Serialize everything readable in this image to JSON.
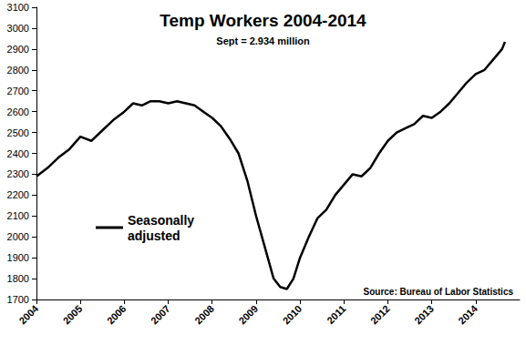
{
  "chart_data": {
    "type": "line",
    "title": "Temp Workers 2004-2014",
    "subtitle": "Sept = 2.934 million",
    "source": "Source: Bureau of Labor Statistics",
    "series": [
      {
        "name": "Seasonally adjusted",
        "color": "#000000",
        "x": [
          2004.0,
          2004.25,
          2004.5,
          2004.75,
          2005.0,
          2005.25,
          2005.5,
          2005.75,
          2006.0,
          2006.2,
          2006.4,
          2006.6,
          2006.8,
          2007.0,
          2007.2,
          2007.4,
          2007.6,
          2007.8,
          2008.0,
          2008.2,
          2008.4,
          2008.6,
          2008.8,
          2009.0,
          2009.2,
          2009.4,
          2009.55,
          2009.7,
          2009.85,
          2010.0,
          2010.2,
          2010.4,
          2010.6,
          2010.8,
          2011.0,
          2011.2,
          2011.4,
          2011.6,
          2011.8,
          2012.0,
          2012.2,
          2012.4,
          2012.6,
          2012.8,
          2013.0,
          2013.2,
          2013.4,
          2013.6,
          2013.8,
          2014.0,
          2014.2,
          2014.4,
          2014.6,
          2014.667
        ],
        "values": [
          2290,
          2330,
          2380,
          2420,
          2480,
          2460,
          2510,
          2560,
          2600,
          2640,
          2630,
          2650,
          2650,
          2640,
          2650,
          2640,
          2630,
          2600,
          2570,
          2530,
          2470,
          2400,
          2270,
          2100,
          1950,
          1800,
          1760,
          1750,
          1800,
          1900,
          2000,
          2090,
          2130,
          2200,
          2250,
          2300,
          2290,
          2330,
          2400,
          2460,
          2500,
          2520,
          2540,
          2580,
          2570,
          2600,
          2640,
          2690,
          2740,
          2780,
          2800,
          2850,
          2900,
          2934
        ]
      }
    ],
    "xlim": [
      2004,
      2015
    ],
    "xticks": [
      2004,
      2005,
      2006,
      2007,
      2008,
      2009,
      2010,
      2011,
      2012,
      2013,
      2014
    ],
    "ylim": [
      1700,
      3100
    ],
    "yticks": [
      1700,
      1800,
      1900,
      2000,
      2100,
      2200,
      2300,
      2400,
      2500,
      2600,
      2700,
      2800,
      2900,
      3000,
      3100
    ],
    "grid": false,
    "legend": "left"
  }
}
